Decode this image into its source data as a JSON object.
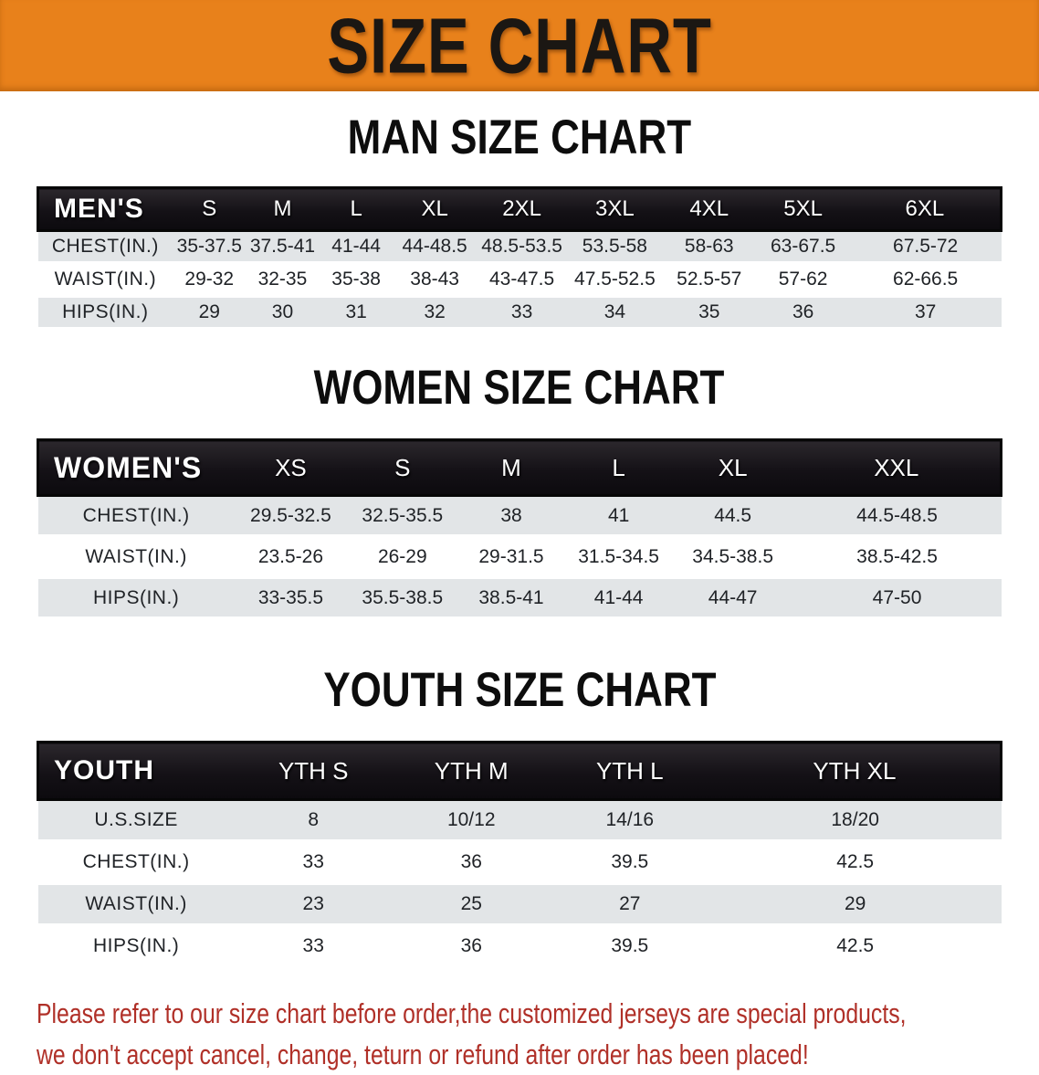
{
  "banner": {
    "title": "SIZE CHART"
  },
  "sections": [
    {
      "title": "MAN SIZE CHART",
      "header_label": "MEN'S",
      "sizes": [
        "S",
        "M",
        "L",
        "XL",
        "2XL",
        "3XL",
        "4XL",
        "5XL",
        "6XL"
      ],
      "rows": [
        {
          "label": "CHEST(IN.)",
          "values": [
            "35-37.5",
            "37.5-41",
            "41-44",
            "44-48.5",
            "48.5-53.5",
            "53.5-58",
            "58-63",
            "63-67.5",
            "67.5-72"
          ]
        },
        {
          "label": "WAIST(IN.)",
          "values": [
            "29-32",
            "32-35",
            "35-38",
            "38-43",
            "43-47.5",
            "47.5-52.5",
            "52.5-57",
            "57-62",
            "62-66.5"
          ]
        },
        {
          "label": "HIPS(IN.)",
          "values": [
            "29",
            "30",
            "31",
            "32",
            "33",
            "34",
            "35",
            "36",
            "37"
          ]
        }
      ]
    },
    {
      "title": "WOMEN SIZE CHART",
      "header_label": "WOMEN'S",
      "sizes": [
        "XS",
        "S",
        "M",
        "L",
        "XL",
        "XXL"
      ],
      "rows": [
        {
          "label": "CHEST(IN.)",
          "values": [
            "29.5-32.5",
            "32.5-35.5",
            "38",
            "41",
            "44.5",
            "44.5-48.5"
          ]
        },
        {
          "label": "WAIST(IN.)",
          "values": [
            "23.5-26",
            "26-29",
            "29-31.5",
            "31.5-34.5",
            "34.5-38.5",
            "38.5-42.5"
          ]
        },
        {
          "label": "HIPS(IN.)",
          "values": [
            "33-35.5",
            "35.5-38.5",
            "38.5-41",
            "41-44",
            "44-47",
            "47-50"
          ]
        }
      ]
    },
    {
      "title": "YOUTH SIZE CHART",
      "header_label": "YOUTH",
      "sizes": [
        "YTH S",
        "YTH M",
        "YTH L",
        "YTH XL"
      ],
      "rows": [
        {
          "label": "U.S.SIZE",
          "values": [
            "8",
            "10/12",
            "14/16",
            "18/20"
          ]
        },
        {
          "label": "CHEST(IN.)",
          "values": [
            "33",
            "36",
            "39.5",
            "42.5"
          ]
        },
        {
          "label": "WAIST(IN.)",
          "values": [
            "23",
            "25",
            "27",
            "29"
          ]
        },
        {
          "label": "HIPS(IN.)",
          "values": [
            "33",
            "36",
            "39.5",
            "42.5"
          ]
        }
      ]
    }
  ],
  "disclaimer": {
    "line1": "Please refer to our size chart before order,the customized jerseys are special products,",
    "line2": "we don't accept cancel, change, teturn or refund after order has been placed!"
  },
  "colors": {
    "banner_bg": "#E8811B",
    "row_stripe": "#E2E5E7",
    "table_header_bg": "#141116",
    "disclaimer_text": "#B03028"
  }
}
